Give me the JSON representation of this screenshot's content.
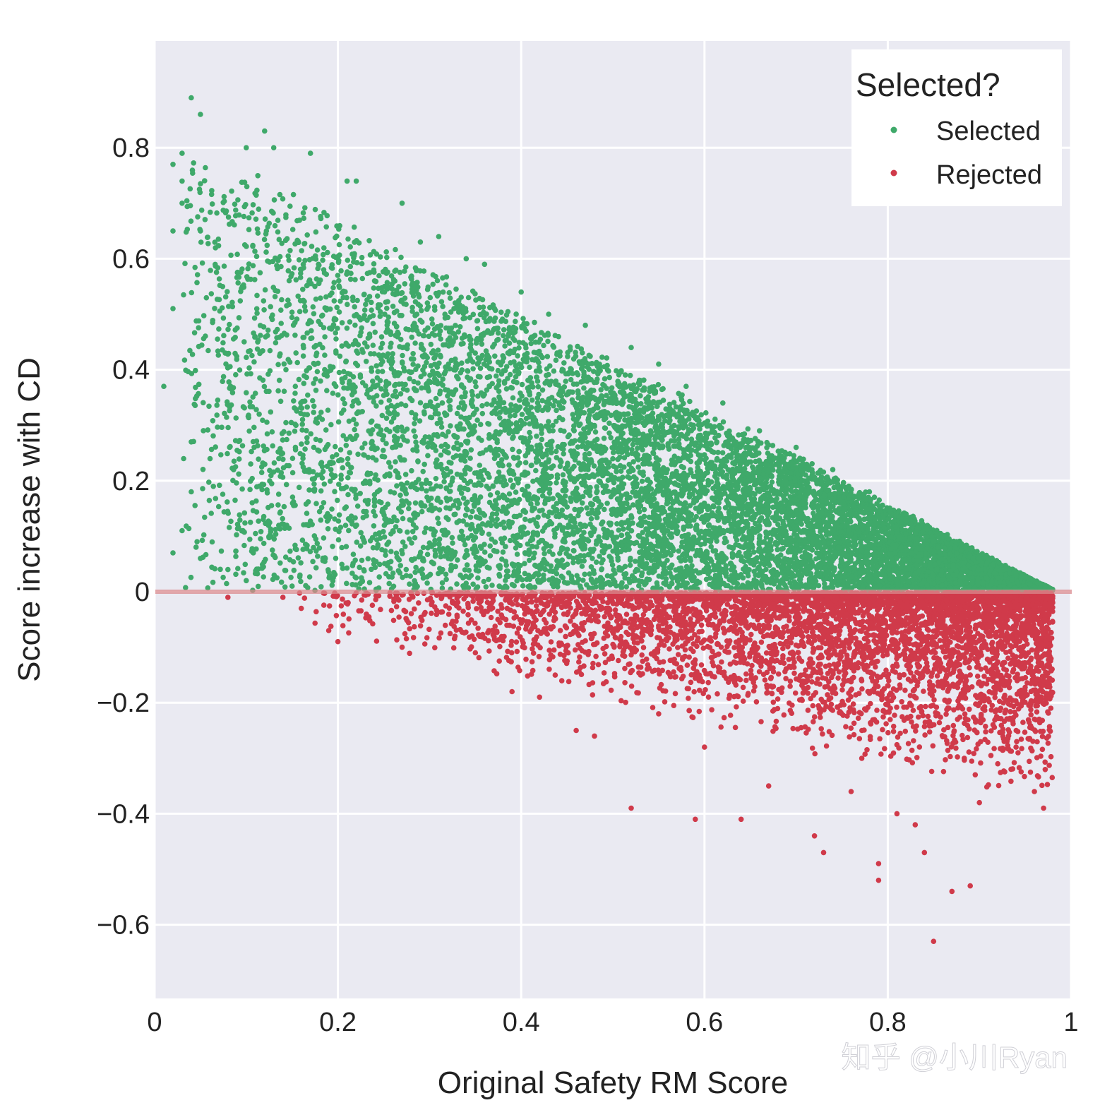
{
  "chart_data": {
    "type": "scatter",
    "title": "",
    "xlabel": "Original Safety RM Score",
    "ylabel": "Score increase with CD",
    "xlim": [
      0,
      1
    ],
    "ylim": [
      -0.73,
      0.99
    ],
    "x_ticks": [
      0,
      0.2,
      0.4,
      0.6,
      0.8,
      1
    ],
    "x_tick_labels": [
      "0",
      "0.2",
      "0.4",
      "0.6",
      "0.8",
      "1"
    ],
    "y_ticks": [
      -0.6,
      -0.4,
      -0.2,
      0,
      0.2,
      0.4,
      0.6,
      0.8
    ],
    "y_tick_labels": [
      "−0.6",
      "−0.4",
      "−0.2",
      "0",
      "0.2",
      "0.4",
      "0.6",
      "0.8"
    ],
    "grid": true,
    "reference_line": {
      "y": 0,
      "color": "#d98a8e"
    },
    "legend": {
      "title": "Selected?",
      "position": "top-right",
      "entries": [
        {
          "label": "Selected",
          "color": "#3fa96a"
        },
        {
          "label": "Rejected",
          "color": "#d03a4a"
        }
      ]
    },
    "series": [
      {
        "name": "Selected",
        "color": "#3fa96a",
        "description": "points with y > 0; upper envelope falls from ~0.8 at x=0.05 to 0 at x=0.98",
        "points": [
          [
            0.04,
            0.89
          ],
          [
            0.05,
            0.86
          ],
          [
            0.12,
            0.83
          ],
          [
            0.13,
            0.8
          ],
          [
            0.1,
            0.8
          ],
          [
            0.03,
            0.79
          ],
          [
            0.17,
            0.79
          ],
          [
            0.02,
            0.77
          ],
          [
            0.03,
            0.74
          ],
          [
            0.21,
            0.74
          ],
          [
            0.22,
            0.74
          ],
          [
            0.27,
            0.7
          ],
          [
            0.03,
            0.7
          ],
          [
            0.05,
            0.65
          ],
          [
            0.02,
            0.65
          ],
          [
            0.29,
            0.63
          ],
          [
            0.31,
            0.64
          ],
          [
            0.34,
            0.6
          ],
          [
            0.36,
            0.59
          ],
          [
            0.4,
            0.54
          ],
          [
            0.43,
            0.5
          ],
          [
            0.47,
            0.48
          ],
          [
            0.52,
            0.44
          ],
          [
            0.55,
            0.41
          ],
          [
            0.58,
            0.37
          ],
          [
            0.62,
            0.34
          ],
          [
            0.66,
            0.29
          ],
          [
            0.7,
            0.26
          ],
          [
            0.74,
            0.22
          ],
          [
            0.78,
            0.18
          ],
          [
            0.82,
            0.14
          ],
          [
            0.86,
            0.1
          ],
          [
            0.9,
            0.06
          ],
          [
            0.94,
            0.03
          ],
          [
            0.01,
            0.37
          ],
          [
            0.02,
            0.51
          ],
          [
            0.04,
            0.27
          ],
          [
            0.04,
            0.18
          ],
          [
            0.03,
            0.11
          ],
          [
            0.02,
            0.07
          ],
          [
            0.05,
            0.06
          ],
          [
            0.08,
            0.04
          ],
          [
            0.1,
            0.02
          ],
          [
            0.15,
            0.01
          ]
        ]
      },
      {
        "name": "Rejected",
        "color": "#d03a4a",
        "description": "points with y < 0; lower envelope falls from ~0 at x=0.13 to about -0.63 at x=0.85",
        "points": [
          [
            0.08,
            -0.01
          ],
          [
            0.14,
            -0.01
          ],
          [
            0.16,
            -0.03
          ],
          [
            0.19,
            -0.07
          ],
          [
            0.2,
            -0.09
          ],
          [
            0.27,
            -0.1
          ],
          [
            0.35,
            -0.11
          ],
          [
            0.39,
            -0.18
          ],
          [
            0.42,
            -0.19
          ],
          [
            0.46,
            -0.25
          ],
          [
            0.48,
            -0.26
          ],
          [
            0.52,
            -0.39
          ],
          [
            0.55,
            -0.22
          ],
          [
            0.59,
            -0.41
          ],
          [
            0.6,
            -0.28
          ],
          [
            0.64,
            -0.41
          ],
          [
            0.67,
            -0.35
          ],
          [
            0.72,
            -0.44
          ],
          [
            0.73,
            -0.47
          ],
          [
            0.76,
            -0.36
          ],
          [
            0.79,
            -0.49
          ],
          [
            0.79,
            -0.52
          ],
          [
            0.81,
            -0.4
          ],
          [
            0.83,
            -0.42
          ],
          [
            0.84,
            -0.47
          ],
          [
            0.85,
            -0.63
          ],
          [
            0.87,
            -0.54
          ],
          [
            0.89,
            -0.53
          ],
          [
            0.9,
            -0.38
          ],
          [
            0.92,
            -0.31
          ],
          [
            0.94,
            -0.28
          ],
          [
            0.96,
            -0.36
          ],
          [
            0.97,
            -0.39
          ],
          [
            0.97,
            -0.16
          ],
          [
            0.98,
            -0.02
          ]
        ]
      }
    ]
  },
  "watermark": "知乎 @小川Ryan"
}
